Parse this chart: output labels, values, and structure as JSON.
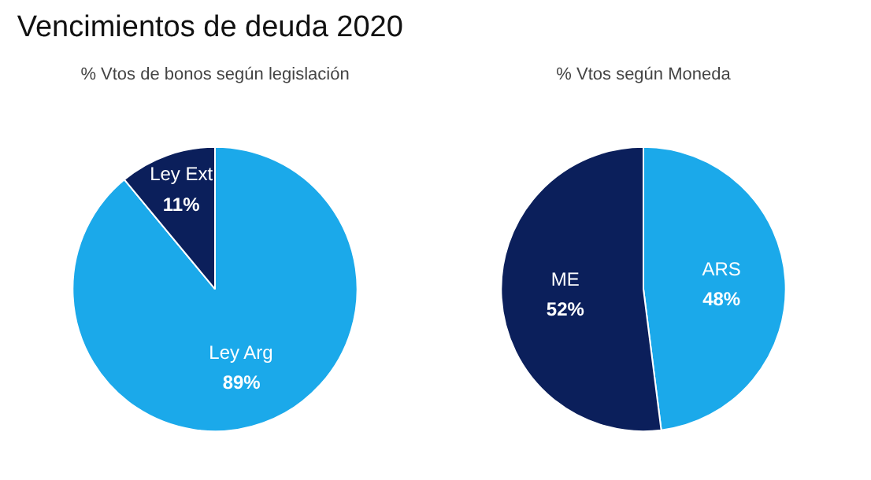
{
  "chart_data": [
    {
      "type": "other",
      "title": "Vencimientos de deuda 2020"
    },
    {
      "type": "pie",
      "title": "% Vtos de bonos según legislación",
      "categories": [
        "Ley Arg",
        "Ley Ext"
      ],
      "values": [
        89,
        11
      ],
      "colors": [
        "#1ba9ea",
        "#0b1f5b"
      ],
      "value_labels": [
        "89%",
        "11%"
      ]
    },
    {
      "type": "pie",
      "title": "% Vtos según Moneda",
      "categories": [
        "ARS",
        "ME"
      ],
      "values": [
        48,
        52
      ],
      "colors": [
        "#1ba9ea",
        "#0b1f5b"
      ],
      "value_labels": [
        "48%",
        "52%"
      ]
    }
  ]
}
